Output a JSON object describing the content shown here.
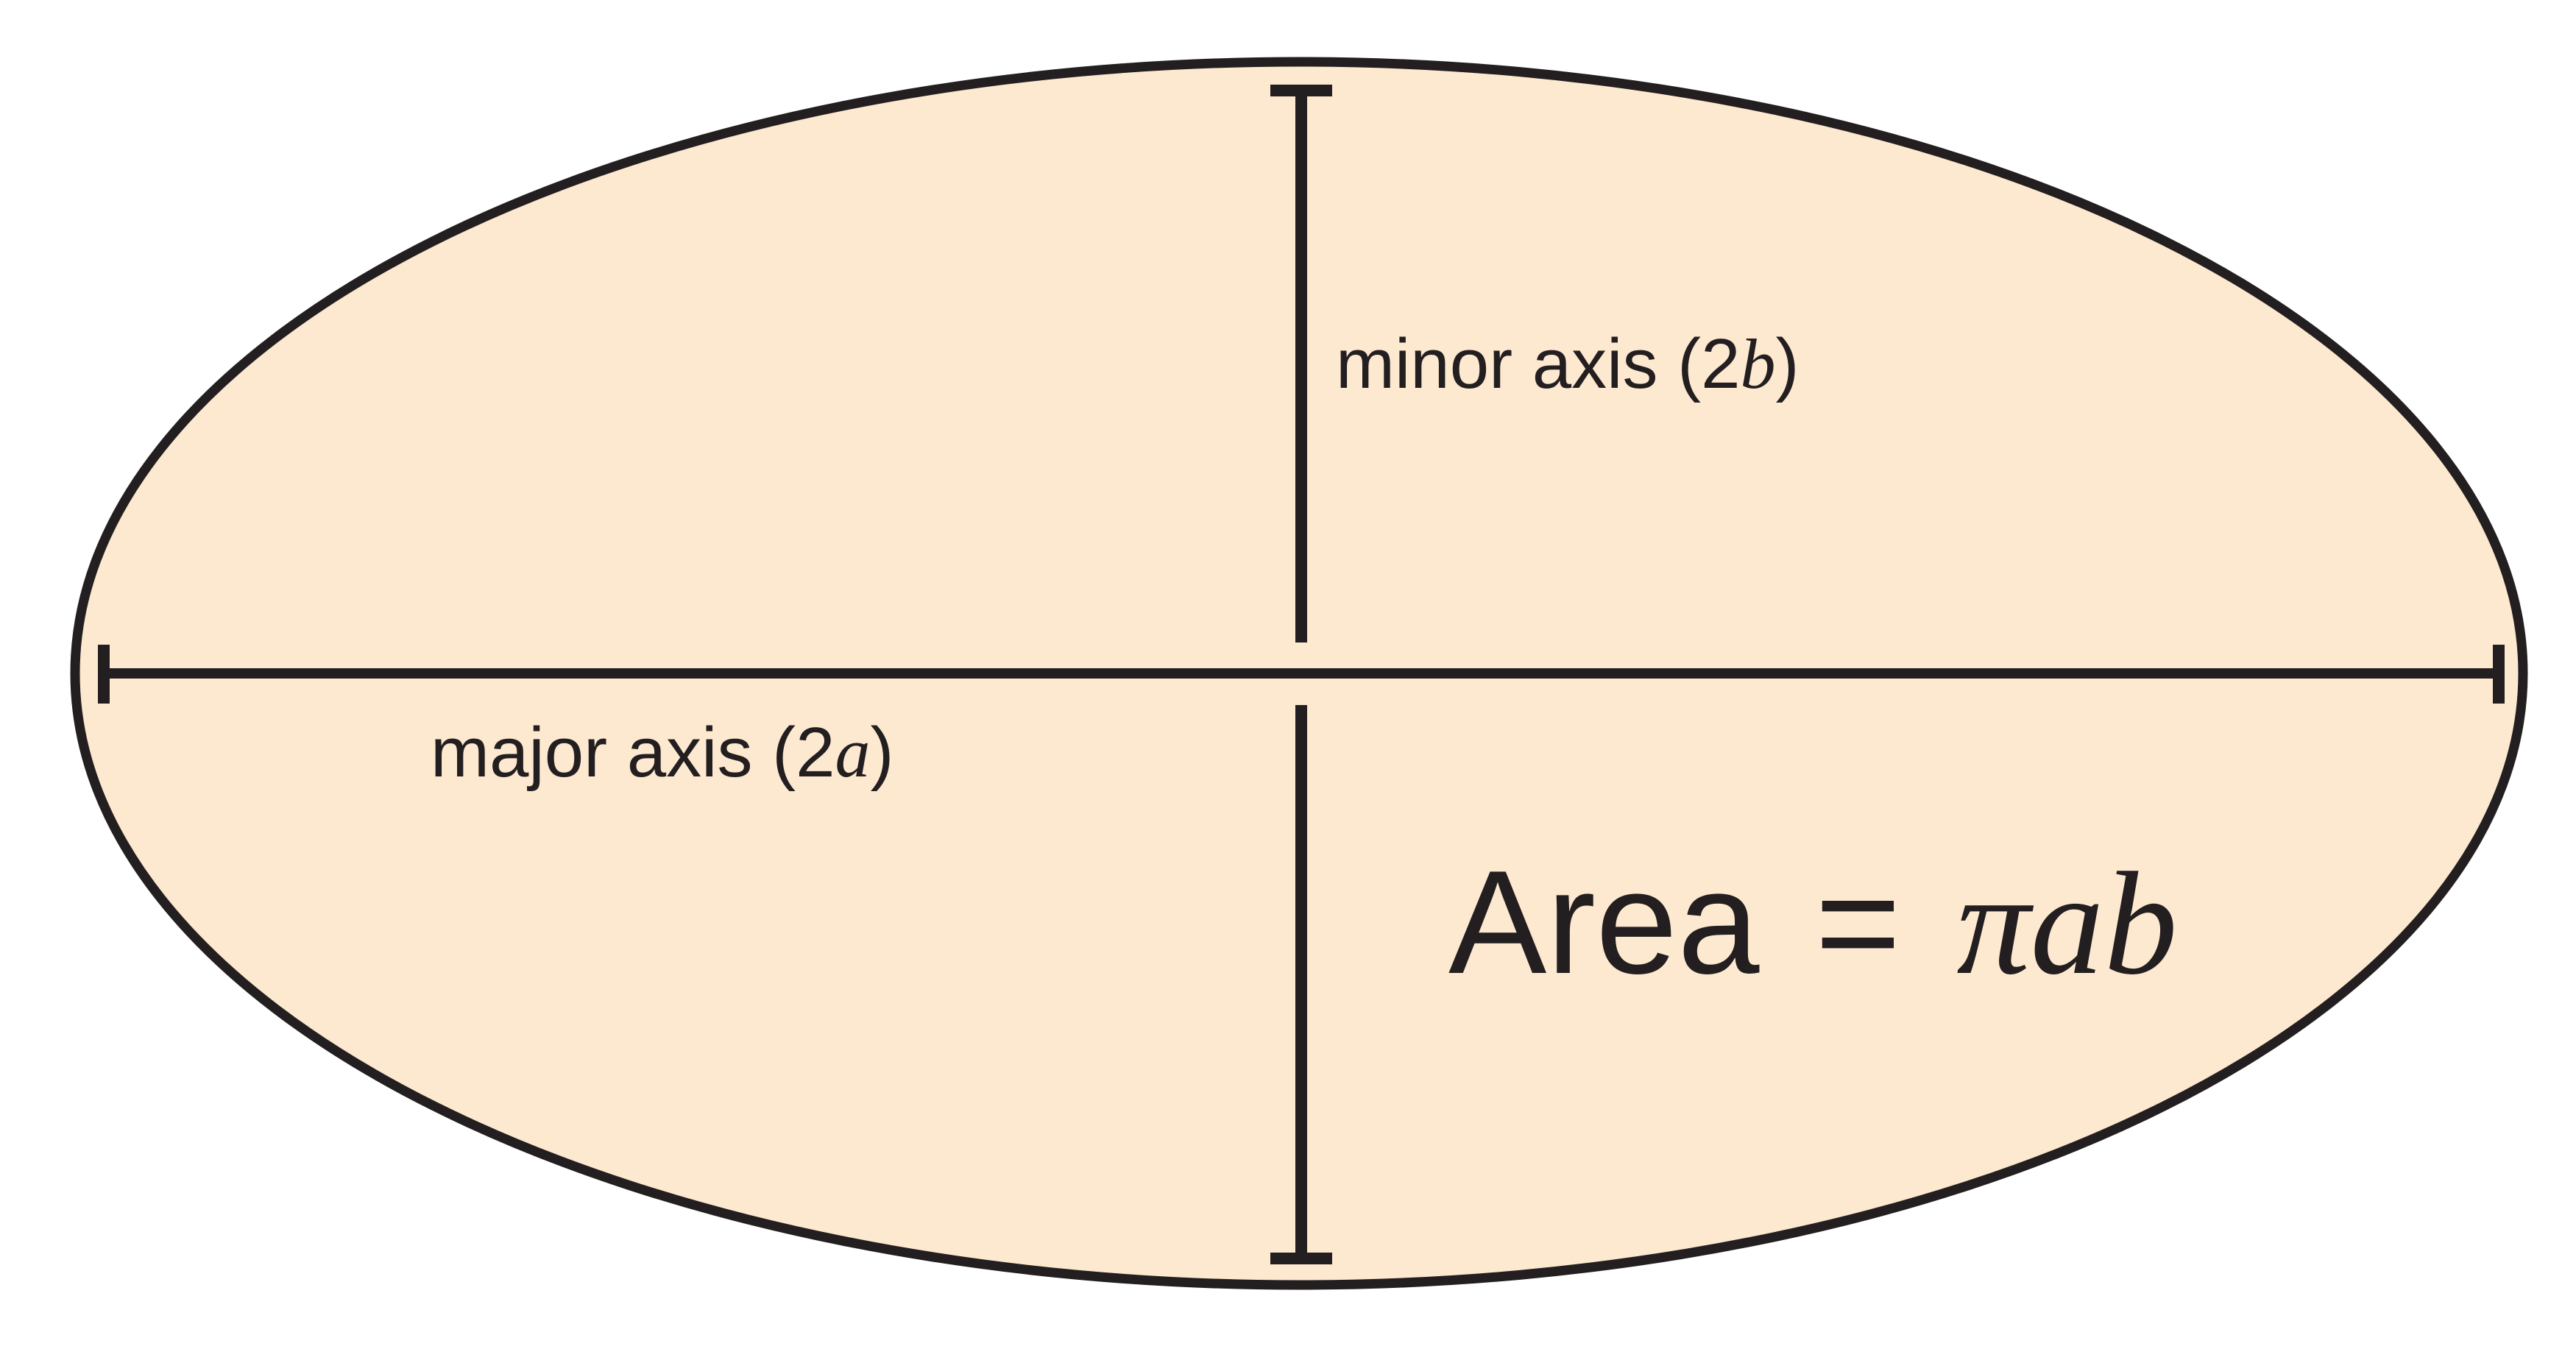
{
  "colors": {
    "ellipse_fill": "#fde8d0",
    "stroke": "#231f20",
    "background": "#ffffff"
  },
  "labels": {
    "minor_axis": {
      "prefix": "minor axis (2",
      "variable": "b",
      "suffix": ")"
    },
    "major_axis": {
      "prefix": "major axis (2",
      "variable": "a",
      "suffix": ")"
    },
    "area_formula": {
      "lhs": "Area",
      "equals": "=",
      "pi": "π",
      "var_a": "a",
      "var_b": "b"
    }
  }
}
